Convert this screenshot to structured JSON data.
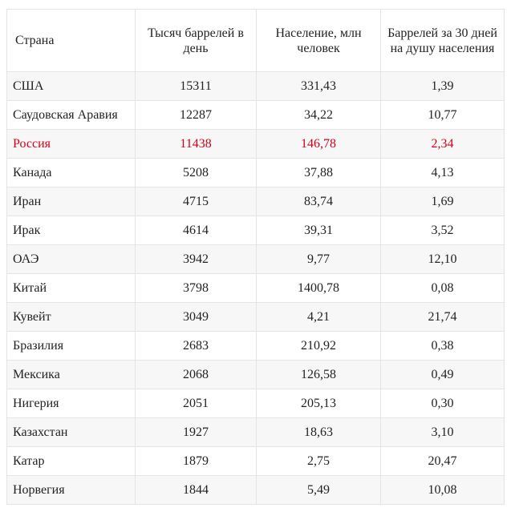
{
  "headers": [
    "Страна",
    "Тысяч баррелей в день",
    "Население, млн человек",
    "Баррелей за 30 дней на душу населения"
  ],
  "highlight_color": "#d0021b",
  "rows": [
    [
      "США",
      "15311",
      "331,43",
      "1,39"
    ],
    [
      "Саудовская Аравия",
      "12287",
      "34,22",
      "10,77"
    ],
    [
      "Россия",
      "11438",
      "146,78",
      "2,34"
    ],
    [
      "Канада",
      "5208",
      "37,88",
      "4,13"
    ],
    [
      "Иран",
      "4715",
      "83,74",
      "1,69"
    ],
    [
      "Ирак",
      "4614",
      "39,31",
      "3,52"
    ],
    [
      "ОАЭ",
      "3942",
      "9,77",
      "12,10"
    ],
    [
      "Китай",
      "3798",
      "1400,78",
      "0,08"
    ],
    [
      "Кувейт",
      "3049",
      "4,21",
      "21,74"
    ],
    [
      "Бразилия",
      "2683",
      "210,92",
      "0,38"
    ],
    [
      "Мексика",
      "2068",
      "126,58",
      "0,49"
    ],
    [
      "Нигерия",
      "2051",
      "205,13",
      "0,30"
    ],
    [
      "Казахстан",
      "1927",
      "18,63",
      "3,10"
    ],
    [
      "Катар",
      "1879",
      "2,75",
      "20,47"
    ],
    [
      "Норвегия",
      "1844",
      "5,49",
      "10,08"
    ]
  ]
}
